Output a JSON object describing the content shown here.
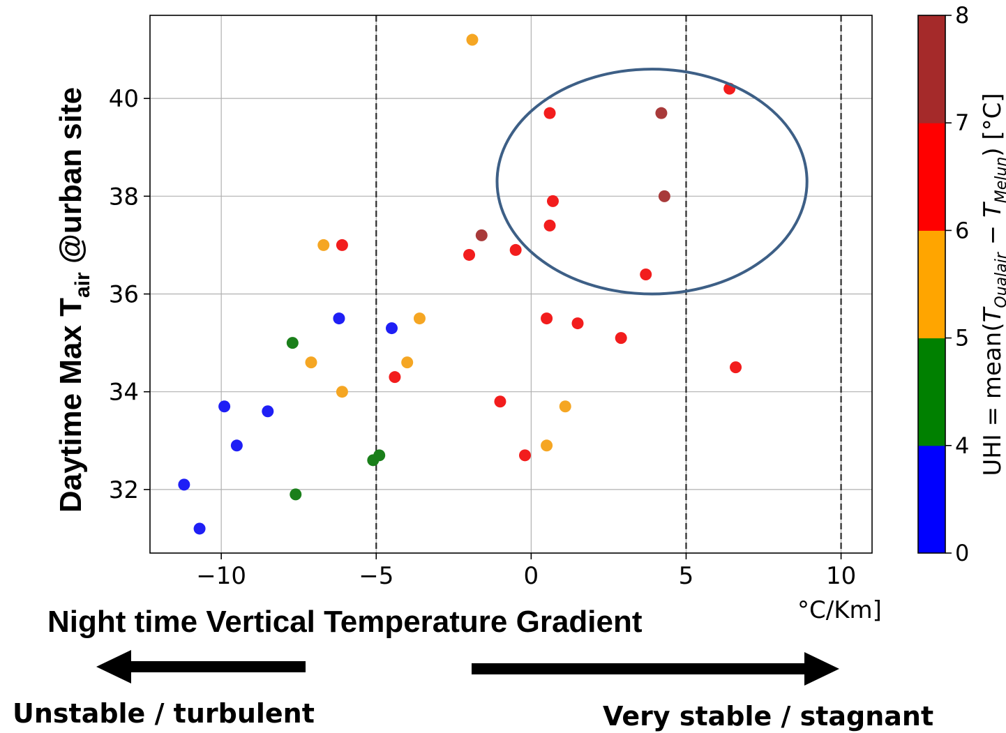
{
  "chart_data": {
    "type": "scatter",
    "title": "",
    "ylabel": {
      "main": "Daytime Max T",
      "sub": "air",
      "tail": "  @urban site"
    },
    "xlabel": "Night time Vertical Temperature Gradient",
    "xunit": "°C/Km]",
    "xlim": [
      -12.3,
      11.0
    ],
    "ylim": [
      30.7,
      41.7
    ],
    "xticks": [
      -10,
      -5,
      0,
      5,
      10
    ],
    "xtick_labels": [
      "−10",
      "−5",
      "0",
      "5",
      "10"
    ],
    "yticks": [
      32,
      34,
      36,
      38,
      40
    ],
    "ytick_labels": [
      "32",
      "34",
      "36",
      "38",
      "40"
    ],
    "grid": true,
    "vlines": [
      -5,
      5,
      10
    ],
    "colorbar": {
      "label_prefix": "UHI = mean(",
      "label_t1": "T",
      "label_s1": "Qualair",
      "label_mid": " − ",
      "label_t2": "T",
      "label_s2": "Melun",
      "label_suffix": ") [°C]",
      "bins": [
        {
          "from": 0,
          "to": 4,
          "color": "#0000ff"
        },
        {
          "from": 4,
          "to": 5,
          "color": "#008000"
        },
        {
          "from": 5,
          "to": 6,
          "color": "#ffa500"
        },
        {
          "from": 6,
          "to": 7,
          "color": "#ff0000"
        },
        {
          "from": 7,
          "to": 8,
          "color": "#a52a2a"
        }
      ],
      "ticks": [
        0,
        4,
        5,
        6,
        7,
        8
      ],
      "tick_labels": [
        "0",
        "4",
        "5",
        "6",
        "7",
        "8"
      ]
    },
    "points": [
      {
        "x": -1.9,
        "y": 41.2,
        "color": "orange"
      },
      {
        "x": 6.4,
        "y": 40.2,
        "color": "red"
      },
      {
        "x": 0.6,
        "y": 39.7,
        "color": "red"
      },
      {
        "x": 4.2,
        "y": 39.7,
        "color": "brown"
      },
      {
        "x": 4.3,
        "y": 38.0,
        "color": "brown"
      },
      {
        "x": 0.7,
        "y": 37.9,
        "color": "red"
      },
      {
        "x": 0.6,
        "y": 37.4,
        "color": "red"
      },
      {
        "x": -1.6,
        "y": 37.2,
        "color": "brown"
      },
      {
        "x": -6.7,
        "y": 37.0,
        "color": "orange"
      },
      {
        "x": -6.1,
        "y": 37.0,
        "color": "red"
      },
      {
        "x": -0.5,
        "y": 36.9,
        "color": "red"
      },
      {
        "x": -2.0,
        "y": 36.8,
        "color": "red"
      },
      {
        "x": 3.7,
        "y": 36.4,
        "color": "red"
      },
      {
        "x": -6.2,
        "y": 35.5,
        "color": "blue"
      },
      {
        "x": -3.6,
        "y": 35.5,
        "color": "orange"
      },
      {
        "x": 0.5,
        "y": 35.5,
        "color": "red"
      },
      {
        "x": 1.5,
        "y": 35.4,
        "color": "red"
      },
      {
        "x": -4.5,
        "y": 35.3,
        "color": "blue"
      },
      {
        "x": 2.9,
        "y": 35.1,
        "color": "red"
      },
      {
        "x": -7.7,
        "y": 35.0,
        "color": "green"
      },
      {
        "x": -7.1,
        "y": 34.6,
        "color": "orange"
      },
      {
        "x": -4.0,
        "y": 34.6,
        "color": "orange"
      },
      {
        "x": 6.6,
        "y": 34.5,
        "color": "red"
      },
      {
        "x": -4.4,
        "y": 34.3,
        "color": "red"
      },
      {
        "x": -6.1,
        "y": 34.0,
        "color": "orange"
      },
      {
        "x": -1.0,
        "y": 33.8,
        "color": "red"
      },
      {
        "x": -9.9,
        "y": 33.7,
        "color": "blue"
      },
      {
        "x": 1.1,
        "y": 33.7,
        "color": "orange"
      },
      {
        "x": -8.5,
        "y": 33.6,
        "color": "blue"
      },
      {
        "x": -9.5,
        "y": 32.9,
        "color": "blue"
      },
      {
        "x": 0.5,
        "y": 32.9,
        "color": "orange"
      },
      {
        "x": -4.9,
        "y": 32.7,
        "color": "green"
      },
      {
        "x": -0.2,
        "y": 32.7,
        "color": "red"
      },
      {
        "x": -5.1,
        "y": 32.6,
        "color": "green"
      },
      {
        "x": -11.2,
        "y": 32.1,
        "color": "blue"
      },
      {
        "x": -7.6,
        "y": 31.9,
        "color": "green"
      },
      {
        "x": -10.7,
        "y": 31.2,
        "color": "blue"
      }
    ],
    "point_colors": {
      "blue": "#1f1ff5",
      "green": "#1a7f1a",
      "orange": "#f5a623",
      "red": "#f21d1d",
      "brown": "#a83a3a"
    },
    "highlight_ellipse": {
      "cx": 3.9,
      "cy": 38.3,
      "rx": 5.0,
      "ry": 2.3,
      "color": "#3d5f86"
    },
    "arrows": {
      "left_label": "Unstable / turbulent",
      "right_label": "Very stable / stagnant"
    }
  }
}
